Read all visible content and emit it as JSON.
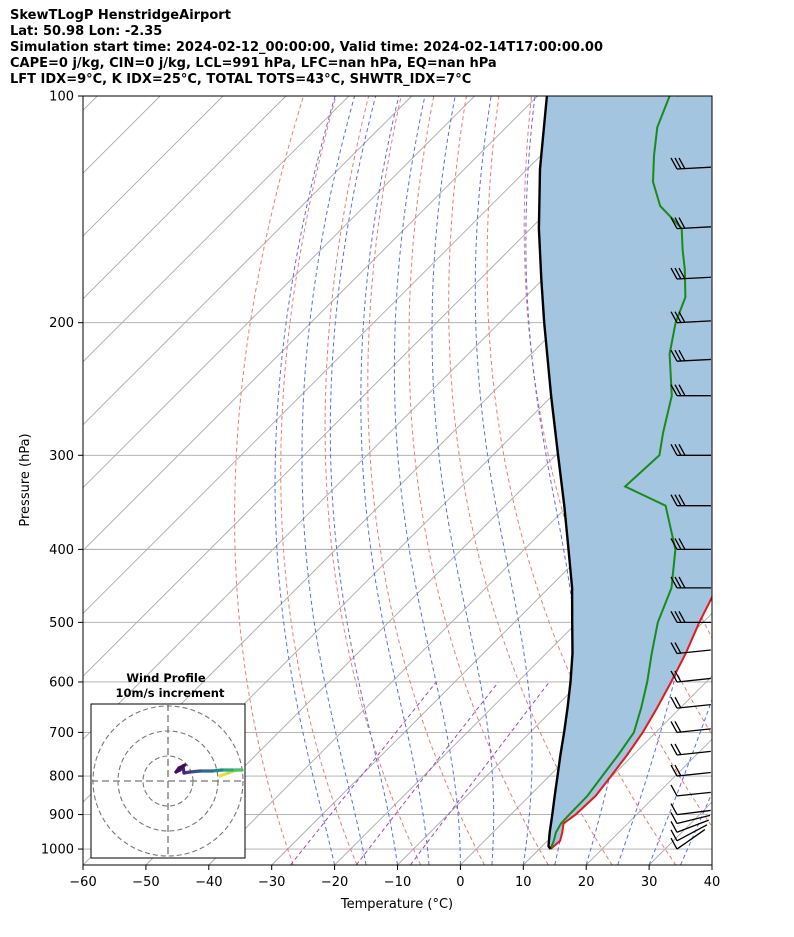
{
  "header": {
    "line1": "SkewTLogP HenstridgeAirport",
    "line2": "Lat: 50.98   Lon: -2.35",
    "line3": "Simulation start time: 2024-02-12_00:00:00, Valid time: 2024-02-14T17:00:00.00",
    "line4": "CAPE=0 j/kg, CIN=0 j/kg, LCL=991 hPa, LFC=nan hPa, EQ=nan hPa",
    "line5": "LFT IDX=9°C, K IDX=25°C, TOTAL TOTS=43°C, SHWTR_IDX=7°C"
  },
  "chart_data": {
    "type": "line",
    "subtype": "skew-t log-p",
    "xlabel": "Temperature (°C)",
    "ylabel": "Pressure (hPa)",
    "xlim": [
      -60,
      40
    ],
    "ylim": [
      1050,
      100
    ],
    "yscale": "log",
    "skew": 45,
    "xticks": [
      -60,
      -50,
      -40,
      -30,
      -20,
      -10,
      0,
      10,
      20,
      30,
      40
    ],
    "xtick_labels": [
      "−60",
      "−50",
      "−40",
      "−30",
      "−20",
      "−10",
      "0",
      "10",
      "20",
      "30",
      "40"
    ],
    "yticks": [
      100,
      200,
      300,
      400,
      500,
      600,
      700,
      800,
      900,
      1000
    ],
    "ytick_labels": [
      "100",
      "200",
      "300",
      "400",
      "500",
      "600",
      "700",
      "800",
      "900",
      "1000"
    ],
    "grid": true,
    "colors": {
      "temperature": "#e41a1c",
      "dewpoint": "#1a8a1a",
      "parcel": "#000000",
      "cape_fill": "#a3c5df",
      "dry_adiabat": "#f07878",
      "moist_adiabat": "#5a6cf0",
      "isotherm": "#aaaaaa",
      "mixing_ratio": "#9b45c8"
    },
    "series": [
      {
        "name": "temperature",
        "pressure": [
          1000,
          975,
          950,
          925,
          900,
          850,
          800,
          750,
          700,
          650,
          600,
          550,
          500,
          450,
          400,
          350,
          300,
          250,
          230,
          210,
          190,
          170,
          160,
          150,
          140,
          130,
          120,
          110,
          100
        ],
        "values": [
          11.8,
          12.0,
          11.0,
          9.8,
          10.3,
          10.5,
          9.8,
          9.0,
          7.9,
          6.3,
          4.4,
          2.2,
          -0.6,
          -3.3,
          -7.4,
          -13.0,
          -20.0,
          -28.0,
          -34.8,
          -37.8,
          -43.0,
          -48.0,
          -50.0,
          -52.5,
          -56.5,
          -60.8,
          -65.5,
          -70.0,
          -74.5
        ]
      },
      {
        "name": "dewpoint",
        "pressure": [
          1000,
          975,
          950,
          925,
          900,
          850,
          800,
          750,
          700,
          650,
          600,
          550,
          500,
          450,
          400,
          350,
          330,
          300,
          280,
          250,
          220,
          200,
          185,
          170,
          160,
          150,
          140,
          130,
          120,
          110,
          100
        ],
        "values": [
          11.8,
          11.0,
          10.0,
          9.4,
          9.3,
          9.2,
          8.4,
          7.6,
          6.5,
          3.8,
          0.6,
          -3.2,
          -7.2,
          -10.5,
          -16.0,
          -24.5,
          -34.0,
          -33.5,
          -36.5,
          -41.0,
          -48.0,
          -52.0,
          -54.5,
          -59.0,
          -62.5,
          -66.0,
          -73.0,
          -78.0,
          -82.0,
          -86.0,
          -89.0
        ]
      },
      {
        "name": "parcel",
        "pressure": [
          1000,
          991,
          950,
          900,
          850,
          800,
          750,
          700,
          650,
          600,
          550,
          500,
          450,
          400,
          350,
          300,
          250,
          200,
          175,
          150,
          125,
          100
        ],
        "values": [
          11.8,
          11.0,
          9.0,
          6.6,
          4.0,
          1.3,
          -1.6,
          -4.6,
          -7.9,
          -11.6,
          -15.8,
          -20.8,
          -26.3,
          -33.0,
          -40.6,
          -49.6,
          -60.2,
          -72.9,
          -80.3,
          -88.7,
          -98.0,
          -108.5
        ]
      }
    ],
    "wind_profile": {
      "title": "Wind Profile",
      "subtitle": "10m/s increment"
    }
  }
}
